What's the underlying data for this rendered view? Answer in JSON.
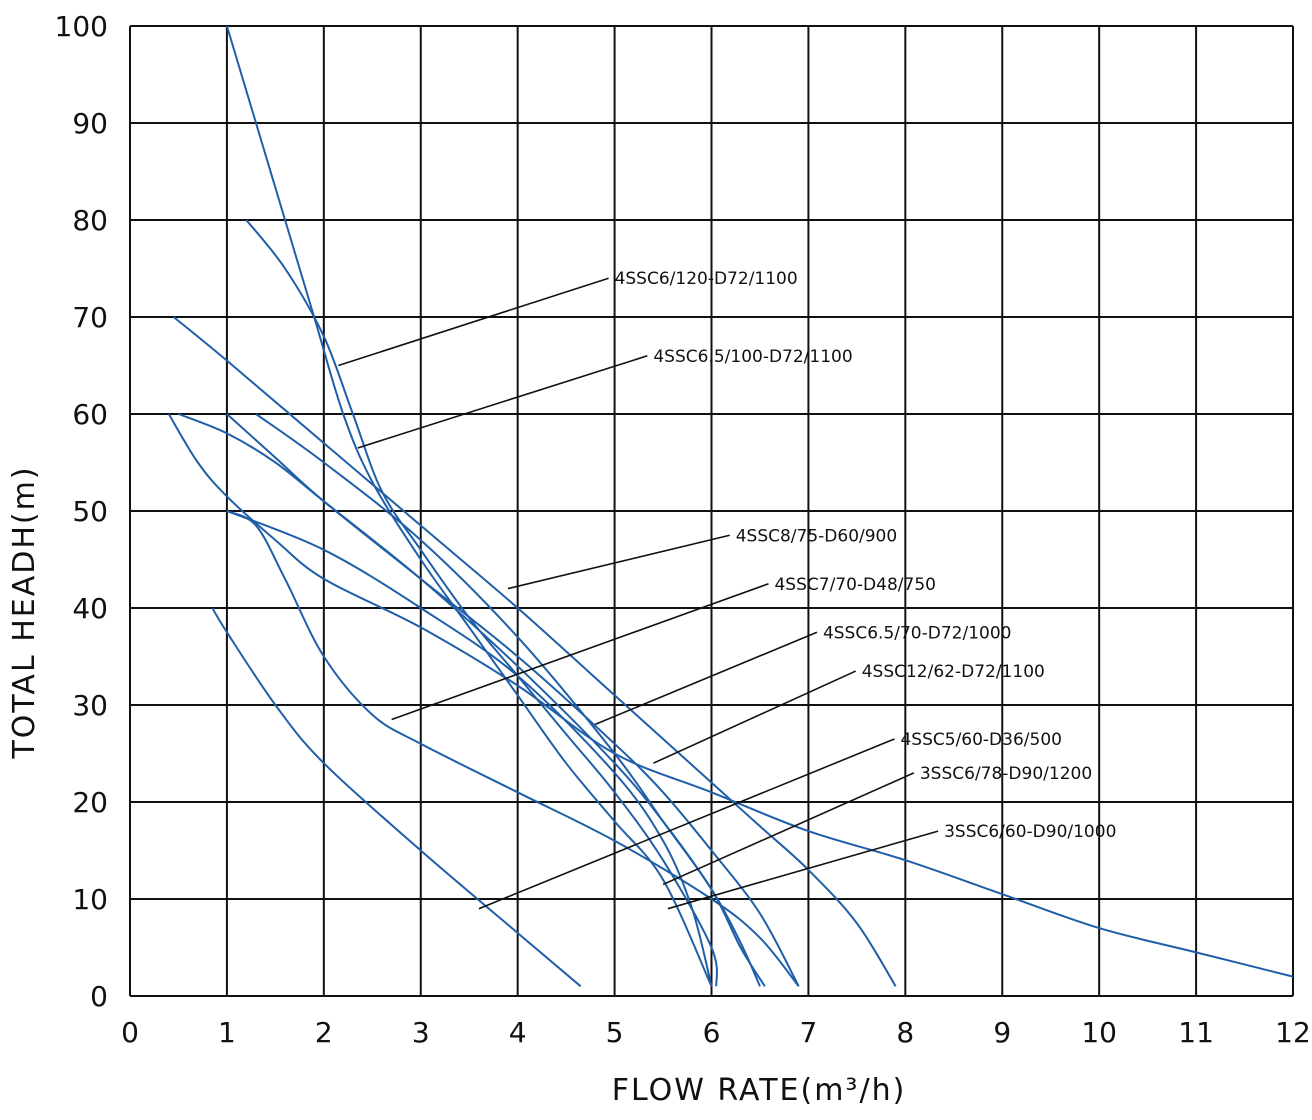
{
  "chart_data": {
    "type": "line",
    "title": "",
    "xlabel": "FLOW RATE(m³/h)",
    "ylabel": "TOTAL HEADH(m)",
    "xlim": [
      0,
      12
    ],
    "ylim": [
      0,
      100
    ],
    "x_ticks": [
      0,
      1,
      2,
      3,
      4,
      5,
      6,
      7,
      8,
      9,
      10,
      11,
      12
    ],
    "y_ticks": [
      0,
      10,
      20,
      30,
      40,
      50,
      60,
      70,
      80,
      90,
      100
    ],
    "grid": true,
    "line_color": "#1f5fa8",
    "series": [
      {
        "name": "4SSC6/120-D72/1100",
        "points": [
          [
            1.0,
            100
          ],
          [
            1.3,
            90
          ],
          [
            1.6,
            80
          ],
          [
            1.9,
            70
          ],
          [
            2.2,
            60
          ],
          [
            2.5,
            53
          ],
          [
            3.0,
            45
          ],
          [
            3.5,
            38
          ],
          [
            4.0,
            31
          ],
          [
            4.5,
            24
          ],
          [
            5.0,
            18
          ],
          [
            5.5,
            12
          ],
          [
            6.0,
            1
          ]
        ],
        "annotation": {
          "point": [
            2.15,
            65
          ],
          "label_at": [
            5.0,
            74
          ]
        }
      },
      {
        "name": "4SSC6.5/100-D72/1100",
        "points": [
          [
            1.2,
            80
          ],
          [
            1.6,
            75
          ],
          [
            2.0,
            68
          ],
          [
            2.3,
            60
          ],
          [
            2.6,
            52
          ],
          [
            3.0,
            46
          ],
          [
            3.5,
            39
          ],
          [
            4.0,
            33
          ],
          [
            4.5,
            27
          ],
          [
            5.0,
            21
          ],
          [
            5.5,
            14
          ],
          [
            6.0,
            5
          ],
          [
            6.05,
            1
          ]
        ],
        "annotation": {
          "point": [
            2.35,
            56.5
          ],
          "label_at": [
            5.4,
            66
          ]
        }
      },
      {
        "name": "4SSC8/75-D60/900",
        "points": [
          [
            0.45,
            70
          ],
          [
            1.0,
            65.5
          ],
          [
            2.0,
            57
          ],
          [
            3.0,
            48.5
          ],
          [
            4.0,
            40
          ],
          [
            5.0,
            31
          ],
          [
            6.0,
            22
          ],
          [
            6.5,
            17.5
          ],
          [
            7.0,
            13
          ],
          [
            7.5,
            7.5
          ],
          [
            7.9,
            1
          ]
        ],
        "annotation": {
          "point": [
            3.9,
            42
          ],
          "label_at": [
            6.25,
            47.5
          ]
        }
      },
      {
        "name": "4SSC7/70-D48/750",
        "points": [
          [
            0.5,
            60
          ],
          [
            1.0,
            58
          ],
          [
            1.5,
            55
          ],
          [
            2.0,
            51
          ],
          [
            3.0,
            43
          ],
          [
            4.0,
            34
          ],
          [
            5.0,
            24
          ],
          [
            5.5,
            18
          ],
          [
            6.0,
            11
          ],
          [
            6.3,
            5.5
          ],
          [
            6.5,
            1
          ]
        ],
        "annotation": {
          "point": [
            2.7,
            28.5
          ],
          "label_at": [
            6.65,
            42.5
          ]
        }
      },
      {
        "name": "4SSC6.5/70-D72/1000",
        "points": [
          [
            1.0,
            60
          ],
          [
            1.5,
            55.5
          ],
          [
            2.0,
            51
          ],
          [
            3.0,
            43
          ],
          [
            4.0,
            35
          ],
          [
            5.0,
            26
          ],
          [
            5.5,
            21
          ],
          [
            6.0,
            15
          ],
          [
            6.5,
            8.5
          ],
          [
            6.9,
            1
          ]
        ],
        "annotation": {
          "point": [
            4.8,
            28
          ],
          "label_at": [
            7.15,
            37.5
          ]
        }
      },
      {
        "name": "4SSC12/62-D72/1100",
        "points": [
          [
            0.4,
            60
          ],
          [
            0.7,
            55
          ],
          [
            1.0,
            51.5
          ],
          [
            1.5,
            47
          ],
          [
            2.0,
            43
          ],
          [
            3.0,
            38
          ],
          [
            4.0,
            32
          ],
          [
            5.0,
            25
          ],
          [
            6.0,
            21
          ],
          [
            7.0,
            17
          ],
          [
            8.0,
            14
          ],
          [
            9.0,
            10.5
          ],
          [
            10.0,
            7
          ],
          [
            11.0,
            4.5
          ],
          [
            12.0,
            2
          ]
        ],
        "annotation": {
          "point": [
            5.4,
            24
          ],
          "label_at": [
            7.55,
            33.5
          ]
        }
      },
      {
        "name": "4SSC5/60-D36/500",
        "points": [
          [
            1.3,
            60
          ],
          [
            2.0,
            55
          ],
          [
            3.0,
            47
          ],
          [
            4.0,
            37
          ],
          [
            5.0,
            25
          ],
          [
            5.5,
            18
          ],
          [
            6.0,
            11
          ],
          [
            6.3,
            5
          ],
          [
            6.55,
            1
          ]
        ],
        "annotation": {
          "point": [
            3.6,
            9
          ],
          "label_at": [
            7.95,
            26.5
          ]
        }
      },
      {
        "name": "3SSC6/78-D90/1200",
        "points": [
          [
            1.0,
            50
          ],
          [
            1.3,
            48.5
          ],
          [
            1.6,
            43
          ],
          [
            2.0,
            35
          ],
          [
            2.5,
            29
          ],
          [
            3.0,
            26
          ],
          [
            4.0,
            21
          ],
          [
            5.0,
            16
          ],
          [
            6.0,
            10
          ],
          [
            6.5,
            6
          ],
          [
            6.9,
            1
          ]
        ],
        "annotation": {
          "point": [
            5.5,
            11.5
          ],
          "label_at": [
            8.15,
            23
          ]
        }
      },
      {
        "name": "3SSC6/60-D90/1000",
        "points": [
          [
            0.85,
            40
          ],
          [
            1.0,
            37.5
          ],
          [
            1.5,
            30
          ],
          [
            2.0,
            24
          ],
          [
            3.0,
            15
          ],
          [
            4.0,
            6.5
          ],
          [
            4.65,
            1
          ]
        ],
        "annotation": {
          "point": [
            5.55,
            9
          ],
          "label_at": [
            8.4,
            17
          ]
        }
      },
      {
        "name": "",
        "points": [
          [
            1.0,
            50
          ],
          [
            2.0,
            46
          ],
          [
            3.0,
            40
          ],
          [
            4.0,
            33
          ],
          [
            5.0,
            23
          ],
          [
            5.5,
            16
          ],
          [
            5.8,
            9
          ],
          [
            6.0,
            1
          ]
        ]
      }
    ]
  }
}
